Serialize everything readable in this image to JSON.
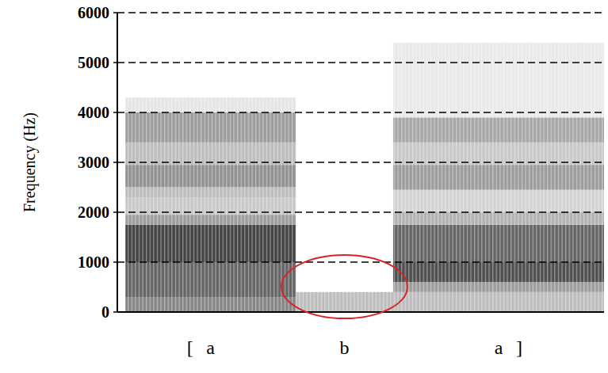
{
  "chart_data": {
    "type": "spectrogram",
    "y_label": "Frequency (Hz)",
    "xlim": [
      0,
      0.6
    ],
    "ylim": [
      0,
      6000
    ],
    "yticks": [
      0,
      1000,
      2000,
      3000,
      4000,
      5000,
      6000
    ],
    "grid": true,
    "tick_labels": "y",
    "transcription_open": "[",
    "transcription_close": "]",
    "segments": [
      {
        "label": "a",
        "start": 0.01,
        "end": 0.22,
        "bands": [
          {
            "low": 0,
            "high": 300,
            "level": 0.55
          },
          {
            "low": 300,
            "high": 1000,
            "level": 0.7
          },
          {
            "low": 1000,
            "high": 1750,
            "level": 0.85
          },
          {
            "low": 1750,
            "high": 1950,
            "level": 0.45
          },
          {
            "low": 1950,
            "high": 2300,
            "level": 0.25
          },
          {
            "low": 2300,
            "high": 2500,
            "level": 0.3
          },
          {
            "low": 2500,
            "high": 2950,
            "level": 0.5
          },
          {
            "low": 2950,
            "high": 3400,
            "level": 0.3
          },
          {
            "low": 3400,
            "high": 4000,
            "level": 0.45
          },
          {
            "low": 4000,
            "high": 4300,
            "level": 0.12
          }
        ]
      },
      {
        "label": "b",
        "start": 0.22,
        "end": 0.34,
        "bands": [
          {
            "low": 0,
            "high": 400,
            "level": 0.3
          }
        ]
      },
      {
        "label": "a",
        "start": 0.34,
        "end": 0.6,
        "bands": [
          {
            "low": 0,
            "high": 400,
            "level": 0.3
          },
          {
            "low": 400,
            "high": 600,
            "level": 0.45
          },
          {
            "low": 600,
            "high": 1000,
            "level": 0.8
          },
          {
            "low": 1000,
            "high": 1750,
            "level": 0.7
          },
          {
            "low": 1750,
            "high": 2000,
            "level": 0.35
          },
          {
            "low": 2000,
            "high": 2450,
            "level": 0.2
          },
          {
            "low": 2450,
            "high": 2950,
            "level": 0.45
          },
          {
            "low": 2950,
            "high": 3400,
            "level": 0.25
          },
          {
            "low": 3400,
            "high": 3900,
            "level": 0.4
          },
          {
            "low": 3900,
            "high": 5400,
            "level": 0.1
          }
        ]
      }
    ]
  }
}
